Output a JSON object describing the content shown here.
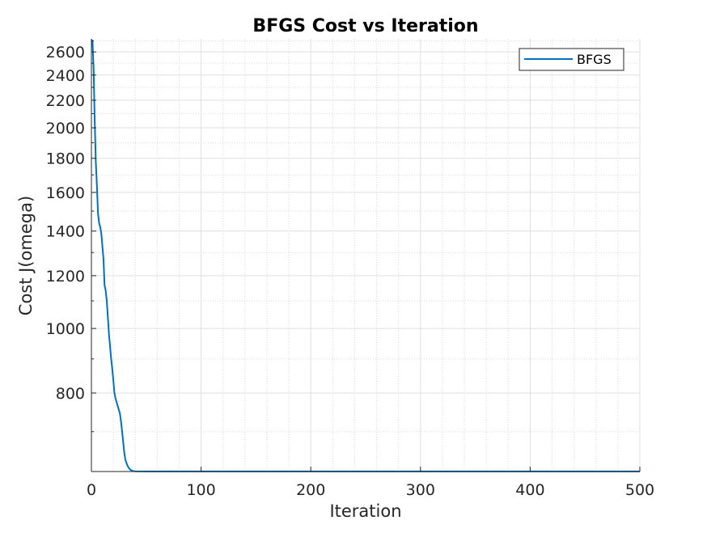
{
  "chart_data": {
    "type": "line",
    "title": "BFGS Cost vs Iteration",
    "xlabel": "Iteration",
    "ylabel": "Cost J(omega)",
    "xlim": [
      0,
      500
    ],
    "ylim": [
      610,
      2720
    ],
    "y_scale": "log",
    "grid": true,
    "minor_grid": true,
    "legend_position": "top-right",
    "x_ticks": [
      0,
      100,
      200,
      300,
      400,
      500
    ],
    "y_ticks": [
      800,
      1000,
      1200,
      1400,
      1600,
      1800,
      2000,
      2200,
      2400,
      2600
    ],
    "series": [
      {
        "name": "BFGS",
        "color": "#0072BD",
        "x": [
          0,
          1,
          2,
          3,
          4,
          5,
          6,
          7,
          8,
          9,
          10,
          11,
          12,
          13,
          14,
          15,
          16,
          17,
          18,
          19,
          20,
          21,
          22,
          23,
          24,
          25,
          26,
          27,
          28,
          29,
          30,
          31,
          32,
          33,
          34,
          35,
          36,
          37,
          38,
          40,
          50,
          100,
          200,
          300,
          400,
          500
        ],
        "y": [
          2710,
          2700,
          2450,
          2050,
          1780,
          1640,
          1490,
          1440,
          1420,
          1390,
          1330,
          1270,
          1160,
          1140,
          1100,
          1040,
          980,
          940,
          900,
          870,
          835,
          800,
          785,
          775,
          765,
          755,
          745,
          725,
          700,
          675,
          650,
          635,
          628,
          622,
          618,
          615,
          613,
          612,
          611,
          610.5,
          610.3,
          610.2,
          610.2,
          610.2,
          610.2,
          610.2
        ]
      }
    ]
  }
}
